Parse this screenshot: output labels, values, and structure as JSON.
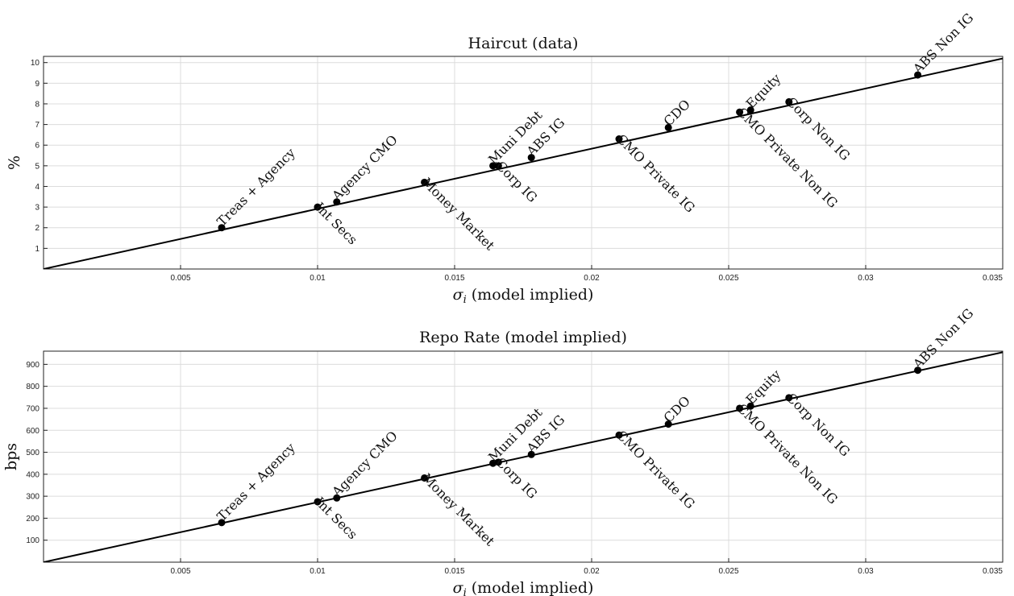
{
  "chart_data": [
    {
      "type": "scatter",
      "title": "Haircut (data)",
      "xlabel_var": "σ",
      "xlabel_sub": "i",
      "xlabel_rest": " (model implied)",
      "ylabel": "%",
      "xlim": [
        0,
        0.035
      ],
      "ylim": [
        0,
        10.3
      ],
      "xticks": [
        0.005,
        0.01,
        0.015,
        0.02,
        0.025,
        0.03,
        0.035
      ],
      "xtick_labels": [
        "0.005",
        "0.01",
        "0.015",
        "0.02",
        "0.025",
        "0.03",
        "0.035"
      ],
      "yticks": [
        1,
        2,
        3,
        4,
        5,
        6,
        7,
        8,
        9,
        10
      ],
      "ytick_labels": [
        "1",
        "2",
        "3",
        "4",
        "5",
        "6",
        "7",
        "8",
        "9",
        "10"
      ],
      "grid": true,
      "line": {
        "x": [
          0,
          0.035
        ],
        "y": [
          0,
          10.2
        ]
      },
      "points": [
        {
          "label": "Treas + Agency",
          "x": 0.0065,
          "y": 2.0,
          "pos": "above"
        },
        {
          "label": "Int Secs",
          "x": 0.01,
          "y": 3.0,
          "pos": "below"
        },
        {
          "label": "Agency CMO",
          "x": 0.0107,
          "y": 3.25,
          "pos": "above"
        },
        {
          "label": "Money Market",
          "x": 0.0139,
          "y": 4.2,
          "pos": "below"
        },
        {
          "label": "Muni Debt",
          "x": 0.0164,
          "y": 5.0,
          "pos": "above"
        },
        {
          "label": "Corp IG",
          "x": 0.0166,
          "y": 5.0,
          "pos": "below"
        },
        {
          "label": "ABS IG",
          "x": 0.0178,
          "y": 5.4,
          "pos": "above"
        },
        {
          "label": "CMO Private IG",
          "x": 0.021,
          "y": 6.3,
          "pos": "below"
        },
        {
          "label": "CDO",
          "x": 0.0228,
          "y": 6.85,
          "pos": "above"
        },
        {
          "label": "CMO Private Non IG",
          "x": 0.0254,
          "y": 7.6,
          "pos": "below"
        },
        {
          "label": "Equity",
          "x": 0.0258,
          "y": 7.7,
          "pos": "above"
        },
        {
          "label": "Corp Non IG",
          "x": 0.0272,
          "y": 8.1,
          "pos": "below"
        },
        {
          "label": "ABS Non IG",
          "x": 0.0319,
          "y": 9.4,
          "pos": "above"
        }
      ]
    },
    {
      "type": "scatter",
      "title": "Repo Rate (model implied)",
      "xlabel_var": "σ",
      "xlabel_sub": "i",
      "xlabel_rest": " (model implied)",
      "ylabel": "bps",
      "xlim": [
        0,
        0.035
      ],
      "ylim": [
        0,
        960
      ],
      "xticks": [
        0.005,
        0.01,
        0.015,
        0.02,
        0.025,
        0.03,
        0.035
      ],
      "xtick_labels": [
        "0.005",
        "0.01",
        "0.015",
        "0.02",
        "0.025",
        "0.03",
        "0.035"
      ],
      "yticks": [
        100,
        200,
        300,
        400,
        500,
        600,
        700,
        800,
        900
      ],
      "ytick_labels": [
        "100",
        "200",
        "300",
        "400",
        "500",
        "600",
        "700",
        "800",
        "900"
      ],
      "grid": true,
      "line": {
        "x": [
          0,
          0.035
        ],
        "y": [
          0,
          955
        ]
      },
      "points": [
        {
          "label": "Treas + Agency",
          "x": 0.0065,
          "y": 180,
          "pos": "above"
        },
        {
          "label": "Int Secs",
          "x": 0.01,
          "y": 275,
          "pos": "below"
        },
        {
          "label": "Agency CMO",
          "x": 0.0107,
          "y": 292,
          "pos": "above"
        },
        {
          "label": "Money Market",
          "x": 0.0139,
          "y": 383,
          "pos": "below"
        },
        {
          "label": "Muni Debt",
          "x": 0.0164,
          "y": 450,
          "pos": "above"
        },
        {
          "label": "Corp IG",
          "x": 0.0166,
          "y": 455,
          "pos": "below"
        },
        {
          "label": "ABS IG",
          "x": 0.0178,
          "y": 490,
          "pos": "above"
        },
        {
          "label": "CMO Private IG",
          "x": 0.021,
          "y": 578,
          "pos": "below"
        },
        {
          "label": "CDO",
          "x": 0.0228,
          "y": 628,
          "pos": "above"
        },
        {
          "label": "CMO Private Non IG",
          "x": 0.0254,
          "y": 700,
          "pos": "below"
        },
        {
          "label": "Equity",
          "x": 0.0258,
          "y": 710,
          "pos": "above"
        },
        {
          "label": "Corp Non IG",
          "x": 0.0272,
          "y": 748,
          "pos": "below"
        },
        {
          "label": "ABS Non IG",
          "x": 0.0319,
          "y": 873,
          "pos": "above"
        }
      ]
    }
  ]
}
